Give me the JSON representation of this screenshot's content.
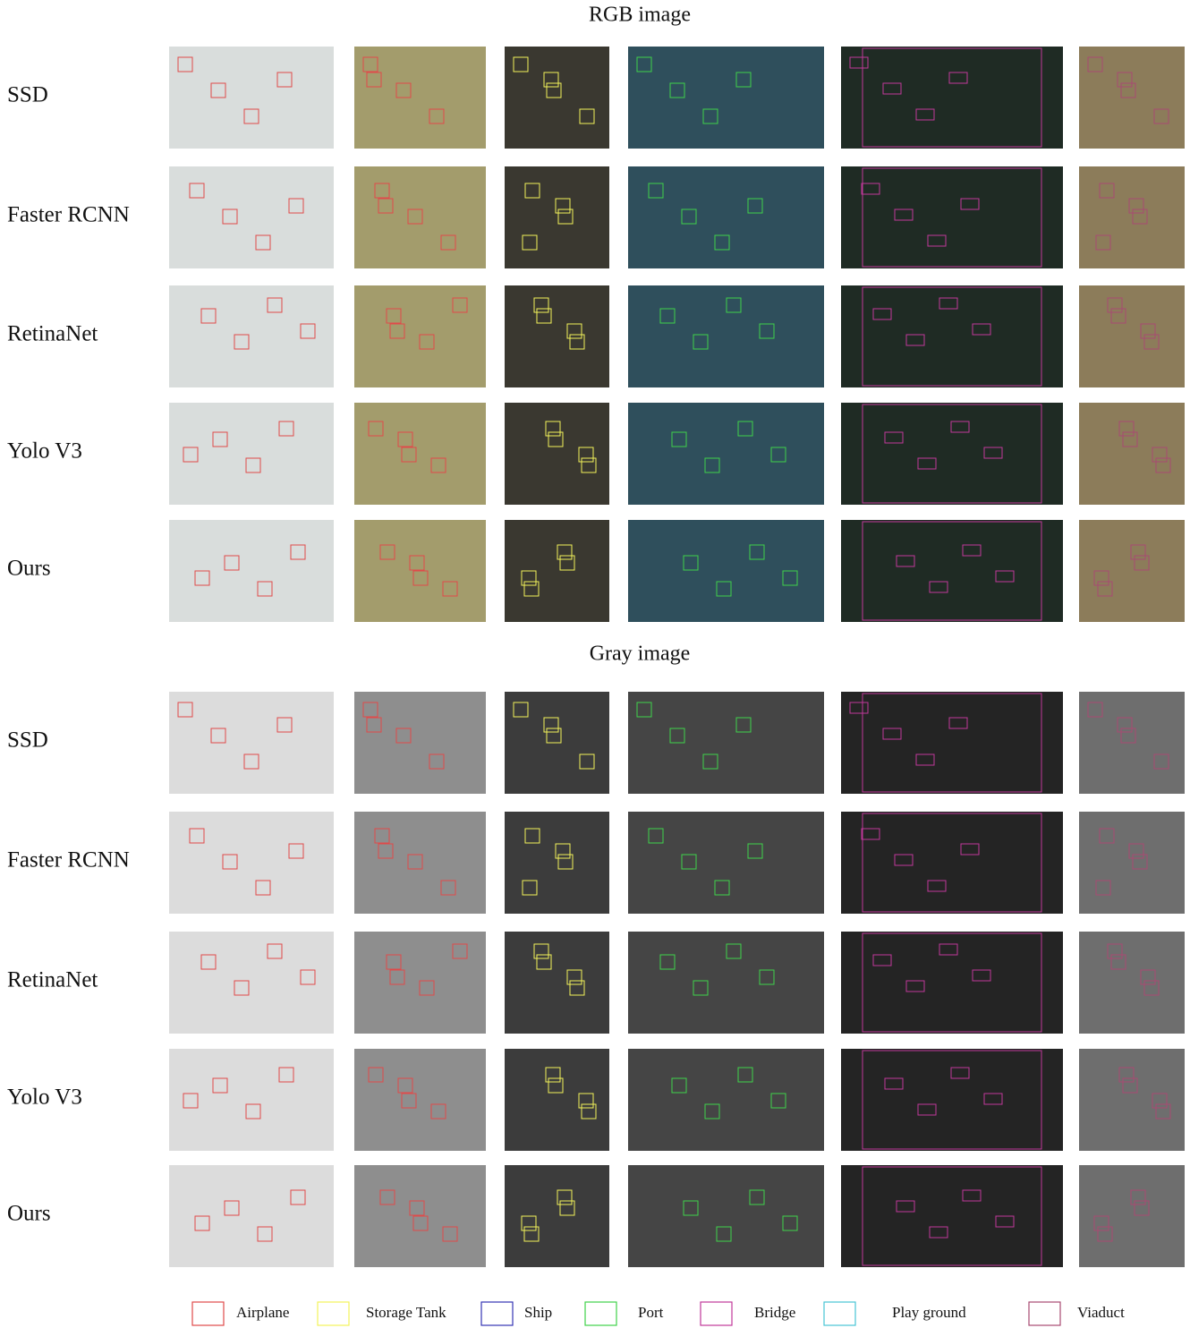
{
  "sections": [
    {
      "title": "RGB image",
      "rows": [
        "SSD",
        "Faster RCNN",
        "RetinaNet",
        "Yolo V3",
        "Ours"
      ]
    },
    {
      "title": "Gray image",
      "rows": [
        "SSD",
        "Faster RCNN",
        "RetinaNet",
        "Yolo V3",
        "Ours"
      ]
    }
  ],
  "legend": [
    {
      "label": "Airplane",
      "color": "#e04a4a"
    },
    {
      "label": "Storage Tank",
      "color": "#f2f25a"
    },
    {
      "label": "Ship",
      "color": "#3434b4"
    },
    {
      "label": "Port",
      "color": "#3fd24a"
    },
    {
      "label": "Bridge",
      "color": "#c0389a"
    },
    {
      "label": "Play ground",
      "color": "#48c4d4"
    },
    {
      "label": "Viaduct",
      "color": "#a84a72"
    }
  ]
}
